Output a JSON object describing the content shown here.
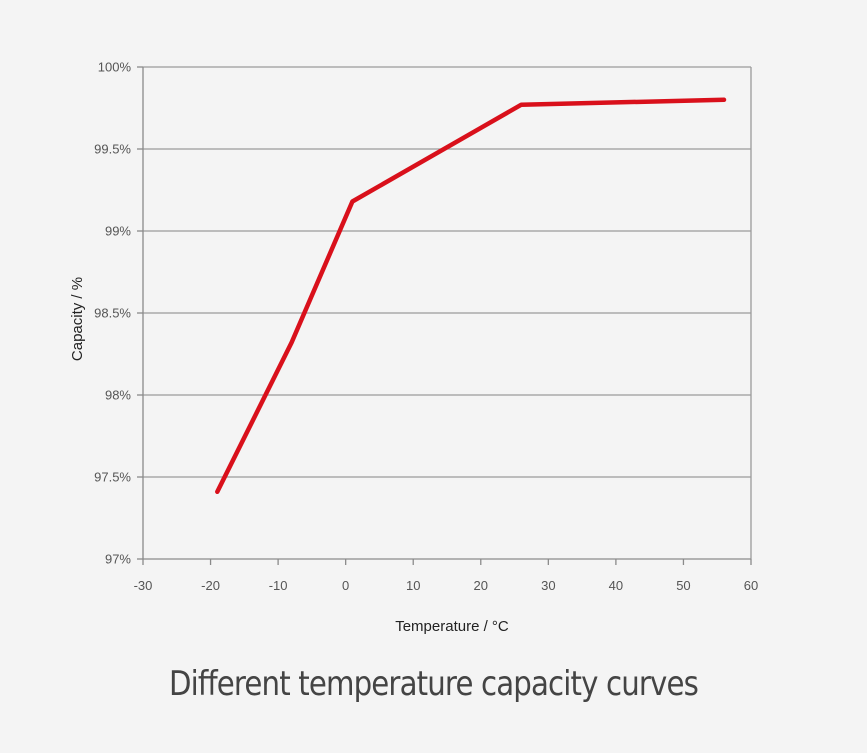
{
  "caption": "Different temperature capacity curves",
  "colors": {
    "background": "#f4f4f4",
    "line": "#d9101b",
    "grid": "#9a9a9a",
    "axis": "#8a8a8a",
    "text": "#444444"
  },
  "chart_data": {
    "type": "line",
    "title": "",
    "xlabel": "Temperature / °C",
    "ylabel": "Capacity / %",
    "xlim": [
      -30,
      60
    ],
    "ylim": [
      97,
      100
    ],
    "x_ticks": [
      -30,
      -20,
      -10,
      0,
      10,
      20,
      30,
      40,
      50,
      60
    ],
    "x_tick_labels": [
      "-30",
      "-20",
      "-10",
      "0",
      "10",
      "20",
      "30",
      "40",
      "50",
      "60"
    ],
    "y_ticks": [
      97,
      97.5,
      98,
      98.5,
      99,
      99.5,
      100
    ],
    "y_tick_labels": [
      "97%",
      "97.5%",
      "98%",
      "98.5%",
      "99%",
      "99.5%",
      "100%"
    ],
    "grid": "horizontal",
    "legend": "none",
    "series": [
      {
        "color": "#d9101b",
        "x": [
          -19,
          -8,
          1,
          26,
          56
        ],
        "y": [
          97.41,
          98.32,
          99.18,
          99.77,
          99.8
        ]
      }
    ]
  }
}
